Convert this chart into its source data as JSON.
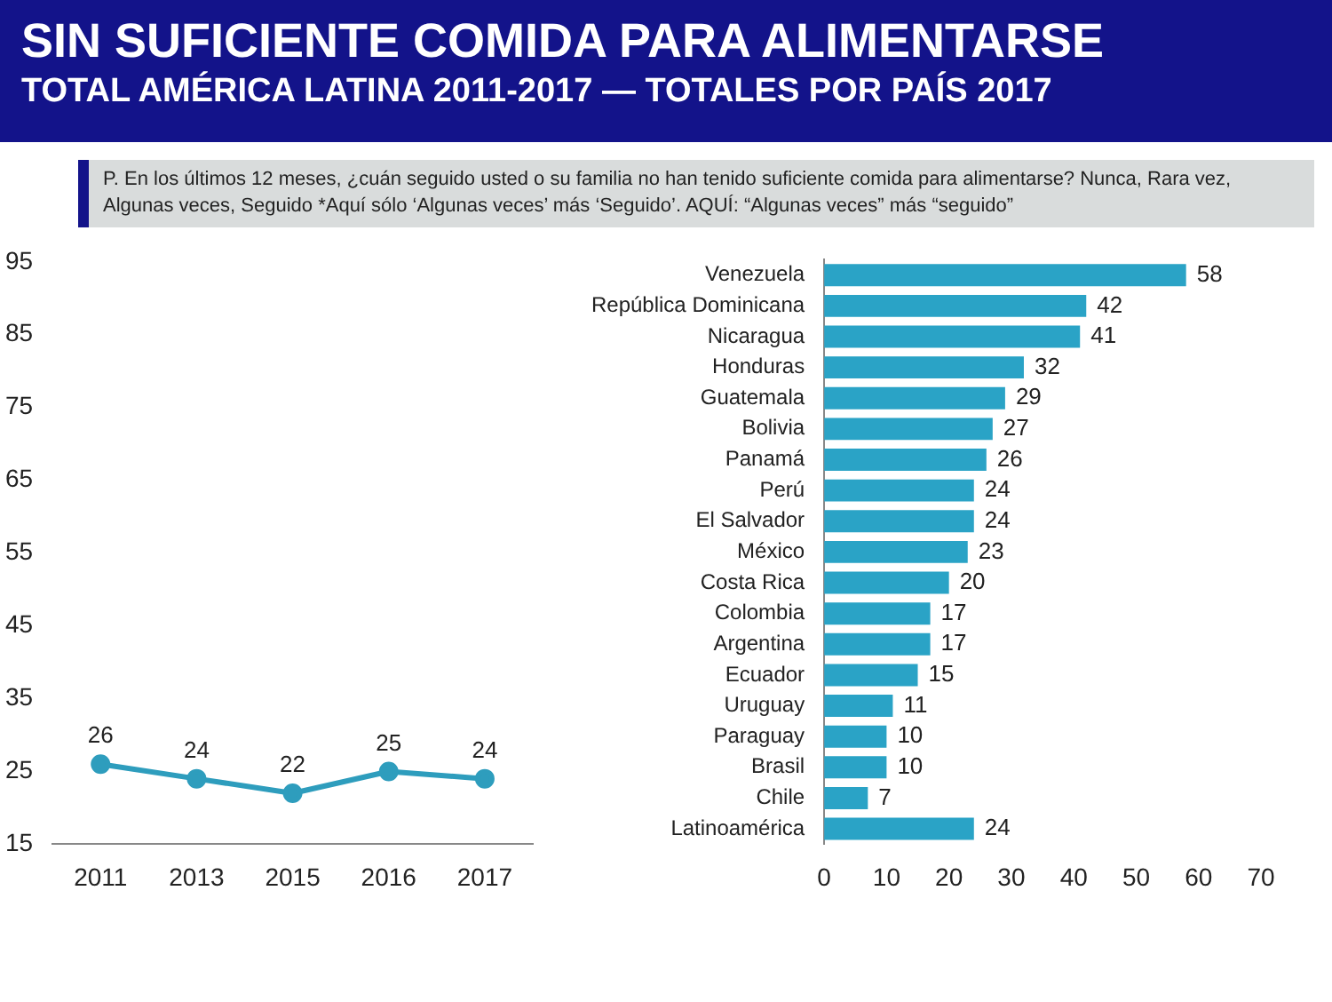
{
  "chart_data": [
    {
      "type": "line",
      "title": "SIN SUFICIENTE COMIDA PARA ALIMENTARSE",
      "subtitle": "TOTAL AMÉRICA LATINA 2011-2017 — TOTALES POR PAÍS 2017",
      "annotations": [
        "P. En los últimos 12 meses, ¿cuán seguido usted o su familia no han tenido suficiente comida para alimentarse? Nunca, Rara vez, Algunas veces, Seguido *Aquí sólo ‘Algunas veces’ más ‘Seguido’. AQUÍ: “Algunas veces” más “seguido”"
      ],
      "categories": [
        "2011",
        "2013",
        "2015",
        "2016",
        "2017"
      ],
      "values": [
        26,
        24,
        22,
        25,
        24
      ],
      "color": "#2e9dbd",
      "ylim": [
        15,
        95
      ],
      "yticks": [
        15,
        25,
        35,
        45,
        55,
        65,
        75,
        85,
        95
      ],
      "marker": "circle",
      "data_labels": true
    },
    {
      "type": "bar",
      "orientation": "horizontal",
      "categories": [
        "Venezuela",
        "República Dominicana",
        "Nicaragua",
        "Honduras",
        "Guatemala",
        "Bolivia",
        "Panamá",
        "Perú",
        "El Salvador",
        "México",
        "Costa Rica",
        "Colombia",
        "Argentina",
        "Ecuador",
        "Uruguay",
        "Paraguay",
        "Brasil",
        "Chile",
        "Latinoamérica"
      ],
      "values": [
        58,
        42,
        41,
        32,
        29,
        27,
        26,
        24,
        24,
        23,
        20,
        17,
        17,
        15,
        11,
        10,
        10,
        7,
        24
      ],
      "color": "#2aa3c6",
      "xlim": [
        0,
        70
      ],
      "xticks": [
        0,
        10,
        20,
        30,
        40,
        50,
        60,
        70
      ],
      "data_labels": true
    }
  ]
}
